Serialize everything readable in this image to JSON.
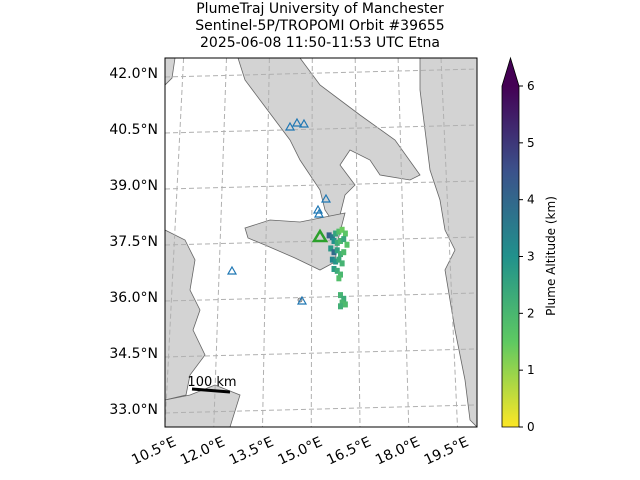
{
  "title_lines": [
    "PlumeTraj    University of Manchester",
    "Sentinel-5P/TROPOMI Orbit #39655",
    "2025-06-08   11:50-11:53 UTC   Etna"
  ],
  "lat_ticks": [
    {
      "value": 42.0,
      "label": "42.0°N"
    },
    {
      "value": 40.5,
      "label": "40.5°N"
    },
    {
      "value": 39.0,
      "label": "39.0°N"
    },
    {
      "value": 37.5,
      "label": "37.5°N"
    },
    {
      "value": 36.0,
      "label": "36.0°N"
    },
    {
      "value": 34.5,
      "label": "34.5°N"
    },
    {
      "value": 33.0,
      "label": "33.0°N"
    }
  ],
  "lon_ticks": [
    {
      "value": 10.5,
      "label": "10.5°E"
    },
    {
      "value": 12.0,
      "label": "12.0°E"
    },
    {
      "value": 13.5,
      "label": "13.5°E"
    },
    {
      "value": 15.0,
      "label": "15.0°E"
    },
    {
      "value": 16.5,
      "label": "16.5°E"
    },
    {
      "value": 18.0,
      "label": "18.0°E"
    },
    {
      "value": 19.5,
      "label": "19.5°E"
    }
  ],
  "colorbar": {
    "label": "Plume Altitude (km)",
    "range": [
      0,
      6
    ],
    "ticks": [
      0,
      1,
      2,
      3,
      4,
      5,
      6
    ]
  },
  "scale_bar": "100 km",
  "plume": [
    {
      "lon": 15.55,
      "lat": 37.65,
      "alt": 4.2
    },
    {
      "lon": 15.65,
      "lat": 37.6,
      "alt": 3.6
    },
    {
      "lon": 15.75,
      "lat": 37.7,
      "alt": 2.5
    },
    {
      "lon": 15.85,
      "lat": 37.75,
      "alt": 1.8
    },
    {
      "lon": 15.95,
      "lat": 37.8,
      "alt": 1.4
    },
    {
      "lon": 16.05,
      "lat": 37.7,
      "alt": 1.6
    },
    {
      "lon": 15.7,
      "lat": 37.5,
      "alt": 3.0
    },
    {
      "lon": 15.8,
      "lat": 37.45,
      "alt": 2.3
    },
    {
      "lon": 15.9,
      "lat": 37.5,
      "alt": 2.0
    },
    {
      "lon": 16.0,
      "lat": 37.55,
      "alt": 2.4
    },
    {
      "lon": 16.1,
      "lat": 37.4,
      "alt": 1.7
    },
    {
      "lon": 15.6,
      "lat": 37.3,
      "alt": 2.8
    },
    {
      "lon": 15.7,
      "lat": 37.2,
      "alt": 3.9
    },
    {
      "lon": 15.8,
      "lat": 37.25,
      "alt": 2.6
    },
    {
      "lon": 15.9,
      "lat": 37.15,
      "alt": 2.2
    },
    {
      "lon": 16.0,
      "lat": 37.2,
      "alt": 1.9
    },
    {
      "lon": 15.65,
      "lat": 37.0,
      "alt": 3.3
    },
    {
      "lon": 15.75,
      "lat": 36.95,
      "alt": 2.9
    },
    {
      "lon": 15.85,
      "lat": 37.0,
      "alt": 2.4
    },
    {
      "lon": 15.95,
      "lat": 36.9,
      "alt": 2.1
    },
    {
      "lon": 15.7,
      "lat": 36.75,
      "alt": 2.7
    },
    {
      "lon": 15.8,
      "lat": 36.7,
      "alt": 2.3
    },
    {
      "lon": 15.9,
      "lat": 36.6,
      "alt": 2.0
    },
    {
      "lon": 15.85,
      "lat": 36.5,
      "alt": 1.8
    },
    {
      "lon": 15.9,
      "lat": 36.05,
      "alt": 2.1
    },
    {
      "lon": 16.0,
      "lat": 35.95,
      "alt": 2.3
    },
    {
      "lon": 15.95,
      "lat": 35.85,
      "alt": 2.0
    },
    {
      "lon": 16.05,
      "lat": 35.8,
      "alt": 1.9
    },
    {
      "lon": 15.9,
      "lat": 35.75,
      "alt": 2.2
    }
  ]
}
